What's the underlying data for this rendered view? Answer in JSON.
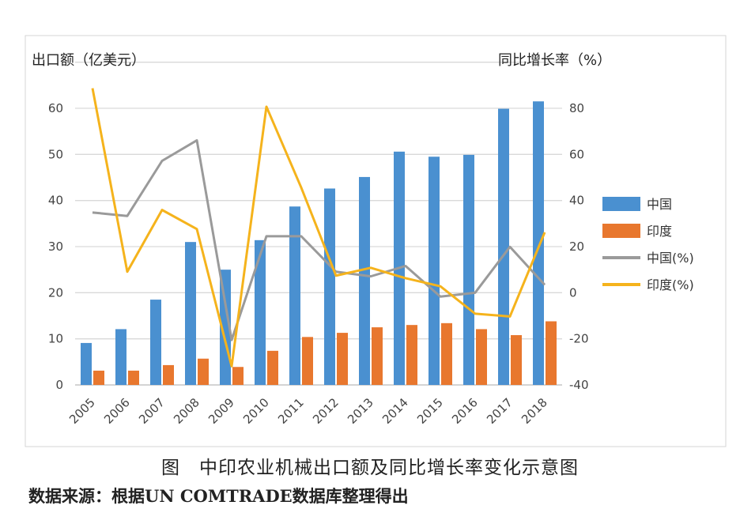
{
  "chart_data": {
    "type": "bar+line",
    "categories": [
      "2005",
      "2006",
      "2007",
      "2008",
      "2009",
      "2010",
      "2011",
      "2012",
      "2013",
      "2014",
      "2015",
      "2016",
      "2017",
      "2018"
    ],
    "left_axis": {
      "label": "出口额（亿美元）",
      "ylim": [
        0,
        70
      ],
      "ticks": [
        0,
        10,
        20,
        30,
        40,
        50,
        60
      ]
    },
    "right_axis": {
      "label": "同比增长率（%）",
      "ylim": [
        -40,
        100
      ],
      "ticks": [
        -40,
        -20,
        0,
        20,
        40,
        60,
        80
      ]
    },
    "series": [
      {
        "name": "中国",
        "type": "bar",
        "axis": "left",
        "color": "#4a90d0",
        "values": [
          9.1,
          12.1,
          18.5,
          31.0,
          25.0,
          31.4,
          38.7,
          42.6,
          45.1,
          50.6,
          49.5,
          49.9,
          59.9,
          61.5
        ]
      },
      {
        "name": "印度",
        "type": "bar",
        "axis": "left",
        "color": "#e8772e",
        "values": [
          3.1,
          3.1,
          4.3,
          5.7,
          3.9,
          7.4,
          10.4,
          11.3,
          12.5,
          13.0,
          13.4,
          12.1,
          10.8,
          13.8
        ]
      },
      {
        "name": "中国(%)",
        "type": "line",
        "axis": "right",
        "color": "#9a9a9a",
        "values": [
          34.8,
          33.3,
          57.2,
          66.1,
          -20.5,
          24.5,
          24.5,
          9.1,
          7.1,
          11.6,
          -1.7,
          0,
          19.9,
          3.4
        ]
      },
      {
        "name": "印度(%)",
        "type": "line",
        "axis": "right",
        "color": "#f5b31c",
        "values": [
          88.7,
          9.1,
          35.9,
          27.6,
          -31.9,
          80.7,
          45.6,
          7.4,
          10.8,
          6.3,
          2.8,
          -9.1,
          -10.3,
          26.2
        ]
      }
    ],
    "grid": true,
    "legend": "right"
  },
  "caption": "图　中印农业机械出口额及同比增长率变化示意图",
  "source": "数据来源：根据UN COMTRADE数据库整理得出"
}
